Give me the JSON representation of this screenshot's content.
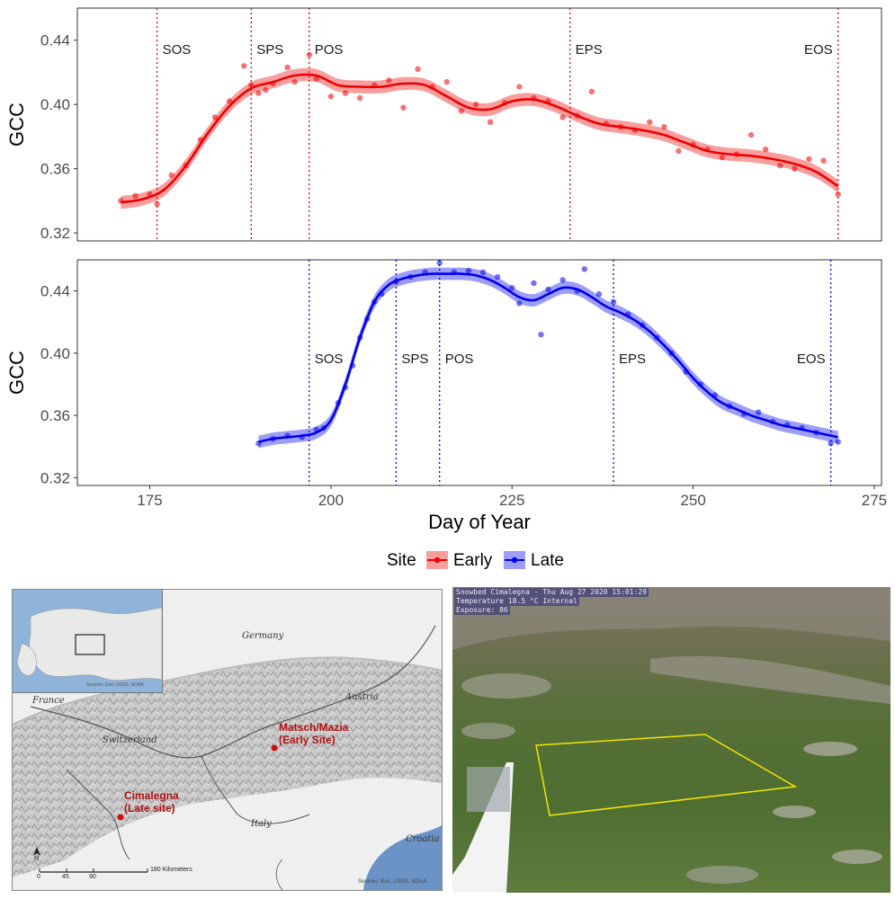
{
  "chart_data": [
    {
      "type": "line",
      "panel": "Early",
      "ylabel": "GCC",
      "xlim": [
        165,
        276
      ],
      "ylim": [
        0.315,
        0.46
      ],
      "yticks": [
        0.32,
        0.36,
        0.4,
        0.44
      ],
      "ytick_labels": [
        "0.32",
        "0.36",
        "0.40",
        "0.44"
      ],
      "color": "#ee0000",
      "band_halfwidth": 0.004,
      "events": [
        {
          "label": "SOS",
          "x": 176
        },
        {
          "label": "SPS",
          "x": 189
        },
        {
          "label": "POS",
          "x": 197
        },
        {
          "label": "EPS",
          "x": 233
        },
        {
          "label": "EOS",
          "x": 270
        }
      ],
      "smooth": {
        "x": [
          171,
          174,
          177,
          180,
          183,
          186,
          189,
          192,
          195,
          198,
          201,
          204,
          207,
          210,
          213,
          216,
          219,
          222,
          225,
          228,
          231,
          234,
          237,
          240,
          243,
          246,
          249,
          252,
          255,
          258,
          261,
          264,
          267,
          270
        ],
        "y": [
          0.339,
          0.341,
          0.347,
          0.362,
          0.382,
          0.399,
          0.41,
          0.414,
          0.418,
          0.418,
          0.412,
          0.411,
          0.411,
          0.413,
          0.412,
          0.405,
          0.398,
          0.397,
          0.402,
          0.403,
          0.399,
          0.393,
          0.388,
          0.386,
          0.384,
          0.381,
          0.376,
          0.371,
          0.369,
          0.368,
          0.366,
          0.363,
          0.358,
          0.349
        ]
      },
      "points": {
        "x": [
          171,
          173,
          175,
          176,
          178,
          180,
          182,
          184,
          186,
          188,
          189,
          190,
          191,
          192,
          194,
          195,
          197,
          198,
          200,
          202,
          204,
          206,
          208,
          210,
          212,
          214,
          216,
          218,
          220,
          222,
          224,
          226,
          228,
          230,
          232,
          234,
          236,
          238,
          240,
          242,
          244,
          246,
          248,
          250,
          252,
          254,
          256,
          258,
          260,
          262,
          264,
          266,
          268,
          270
        ],
        "y": [
          0.34,
          0.343,
          0.344,
          0.338,
          0.356,
          0.362,
          0.378,
          0.392,
          0.402,
          0.424,
          0.412,
          0.407,
          0.409,
          0.413,
          0.423,
          0.414,
          0.431,
          0.416,
          0.405,
          0.407,
          0.404,
          0.412,
          0.415,
          0.398,
          0.422,
          0.411,
          0.414,
          0.396,
          0.4,
          0.389,
          0.401,
          0.411,
          0.404,
          0.402,
          0.392,
          0.393,
          0.408,
          0.388,
          0.386,
          0.384,
          0.389,
          0.386,
          0.371,
          0.375,
          0.372,
          0.367,
          0.369,
          0.381,
          0.372,
          0.362,
          0.36,
          0.366,
          0.365,
          0.344
        ]
      }
    },
    {
      "type": "line",
      "panel": "Late",
      "ylabel": "GCC",
      "xlabel": "Day of Year",
      "xlim": [
        165,
        276
      ],
      "ylim": [
        0.315,
        0.46
      ],
      "xticks": [
        175,
        200,
        225,
        250,
        275
      ],
      "xtick_labels": [
        "175",
        "200",
        "225",
        "250",
        "275"
      ],
      "yticks": [
        0.32,
        0.36,
        0.4,
        0.44
      ],
      "ytick_labels": [
        "0.32",
        "0.36",
        "0.40",
        "0.44"
      ],
      "color": "#0000ee",
      "band_halfwidth": 0.004,
      "events": [
        {
          "label": "SOS",
          "x": 197
        },
        {
          "label": "SPS",
          "x": 209
        },
        {
          "label": "POS",
          "x": 215
        },
        {
          "label": "EPS",
          "x": 239
        },
        {
          "label": "EOS",
          "x": 269
        }
      ],
      "smooth": {
        "x": [
          190,
          192,
          194,
          196,
          198,
          200,
          202,
          204,
          206,
          208,
          210,
          212,
          214,
          216,
          218,
          220,
          222,
          224,
          226,
          228,
          230,
          232,
          234,
          236,
          238,
          240,
          242,
          244,
          246,
          248,
          250,
          252,
          254,
          256,
          258,
          260,
          262,
          264,
          266,
          268,
          270
        ],
        "y": [
          0.343,
          0.345,
          0.346,
          0.347,
          0.349,
          0.357,
          0.38,
          0.41,
          0.433,
          0.444,
          0.448,
          0.45,
          0.451,
          0.451,
          0.451,
          0.45,
          0.447,
          0.442,
          0.436,
          0.434,
          0.438,
          0.442,
          0.441,
          0.436,
          0.43,
          0.426,
          0.421,
          0.414,
          0.405,
          0.395,
          0.384,
          0.375,
          0.368,
          0.364,
          0.36,
          0.357,
          0.354,
          0.352,
          0.35,
          0.348,
          0.346
        ]
      },
      "points": {
        "x": [
          190,
          192,
          194,
          196,
          198,
          199,
          201,
          202,
          203,
          204,
          205,
          206,
          207,
          209,
          211,
          213,
          215,
          217,
          219,
          221,
          223,
          225,
          226,
          228,
          229,
          230,
          232,
          234,
          235,
          237,
          239,
          241,
          243,
          245,
          247,
          249,
          251,
          253,
          255,
          257,
          259,
          261,
          263,
          265,
          267,
          269,
          270
        ],
        "y": [
          0.342,
          0.345,
          0.347,
          0.346,
          0.351,
          0.352,
          0.368,
          0.378,
          0.392,
          0.41,
          0.422,
          0.433,
          0.438,
          0.446,
          0.449,
          0.452,
          0.458,
          0.452,
          0.453,
          0.452,
          0.449,
          0.442,
          0.432,
          0.445,
          0.412,
          0.441,
          0.447,
          0.44,
          0.454,
          0.438,
          0.433,
          0.425,
          0.418,
          0.41,
          0.4,
          0.388,
          0.38,
          0.373,
          0.366,
          0.361,
          0.362,
          0.356,
          0.354,
          0.352,
          0.349,
          0.342,
          0.343
        ]
      }
    }
  ],
  "legend": {
    "title": "Site",
    "items": [
      {
        "label": "Early",
        "color": "#ee0000"
      },
      {
        "label": "Late",
        "color": "#0000ee"
      }
    ]
  },
  "map": {
    "countries": [
      "Germany",
      "Austria",
      "Switzerland",
      "France",
      "Italy",
      "Croatia"
    ],
    "sites": [
      "Matsch/Mazia\n(Early Site)",
      "Cimalegna\n(Late site)"
    ],
    "scale_labels": [
      "0",
      "45",
      "90",
      "180 Kilometers"
    ],
    "north_label": "N",
    "inset_caption": "Sources: Esri, USGS, NOAA",
    "credit": "Sources: Esri, USGS, NOAA"
  },
  "camera": {
    "overlay_lines": [
      "Snowbed Cimalegna - Thu Aug 27 2020 15:01:29",
      "Temperature 18.5 °C Internal",
      "Exposure: 86"
    ]
  }
}
